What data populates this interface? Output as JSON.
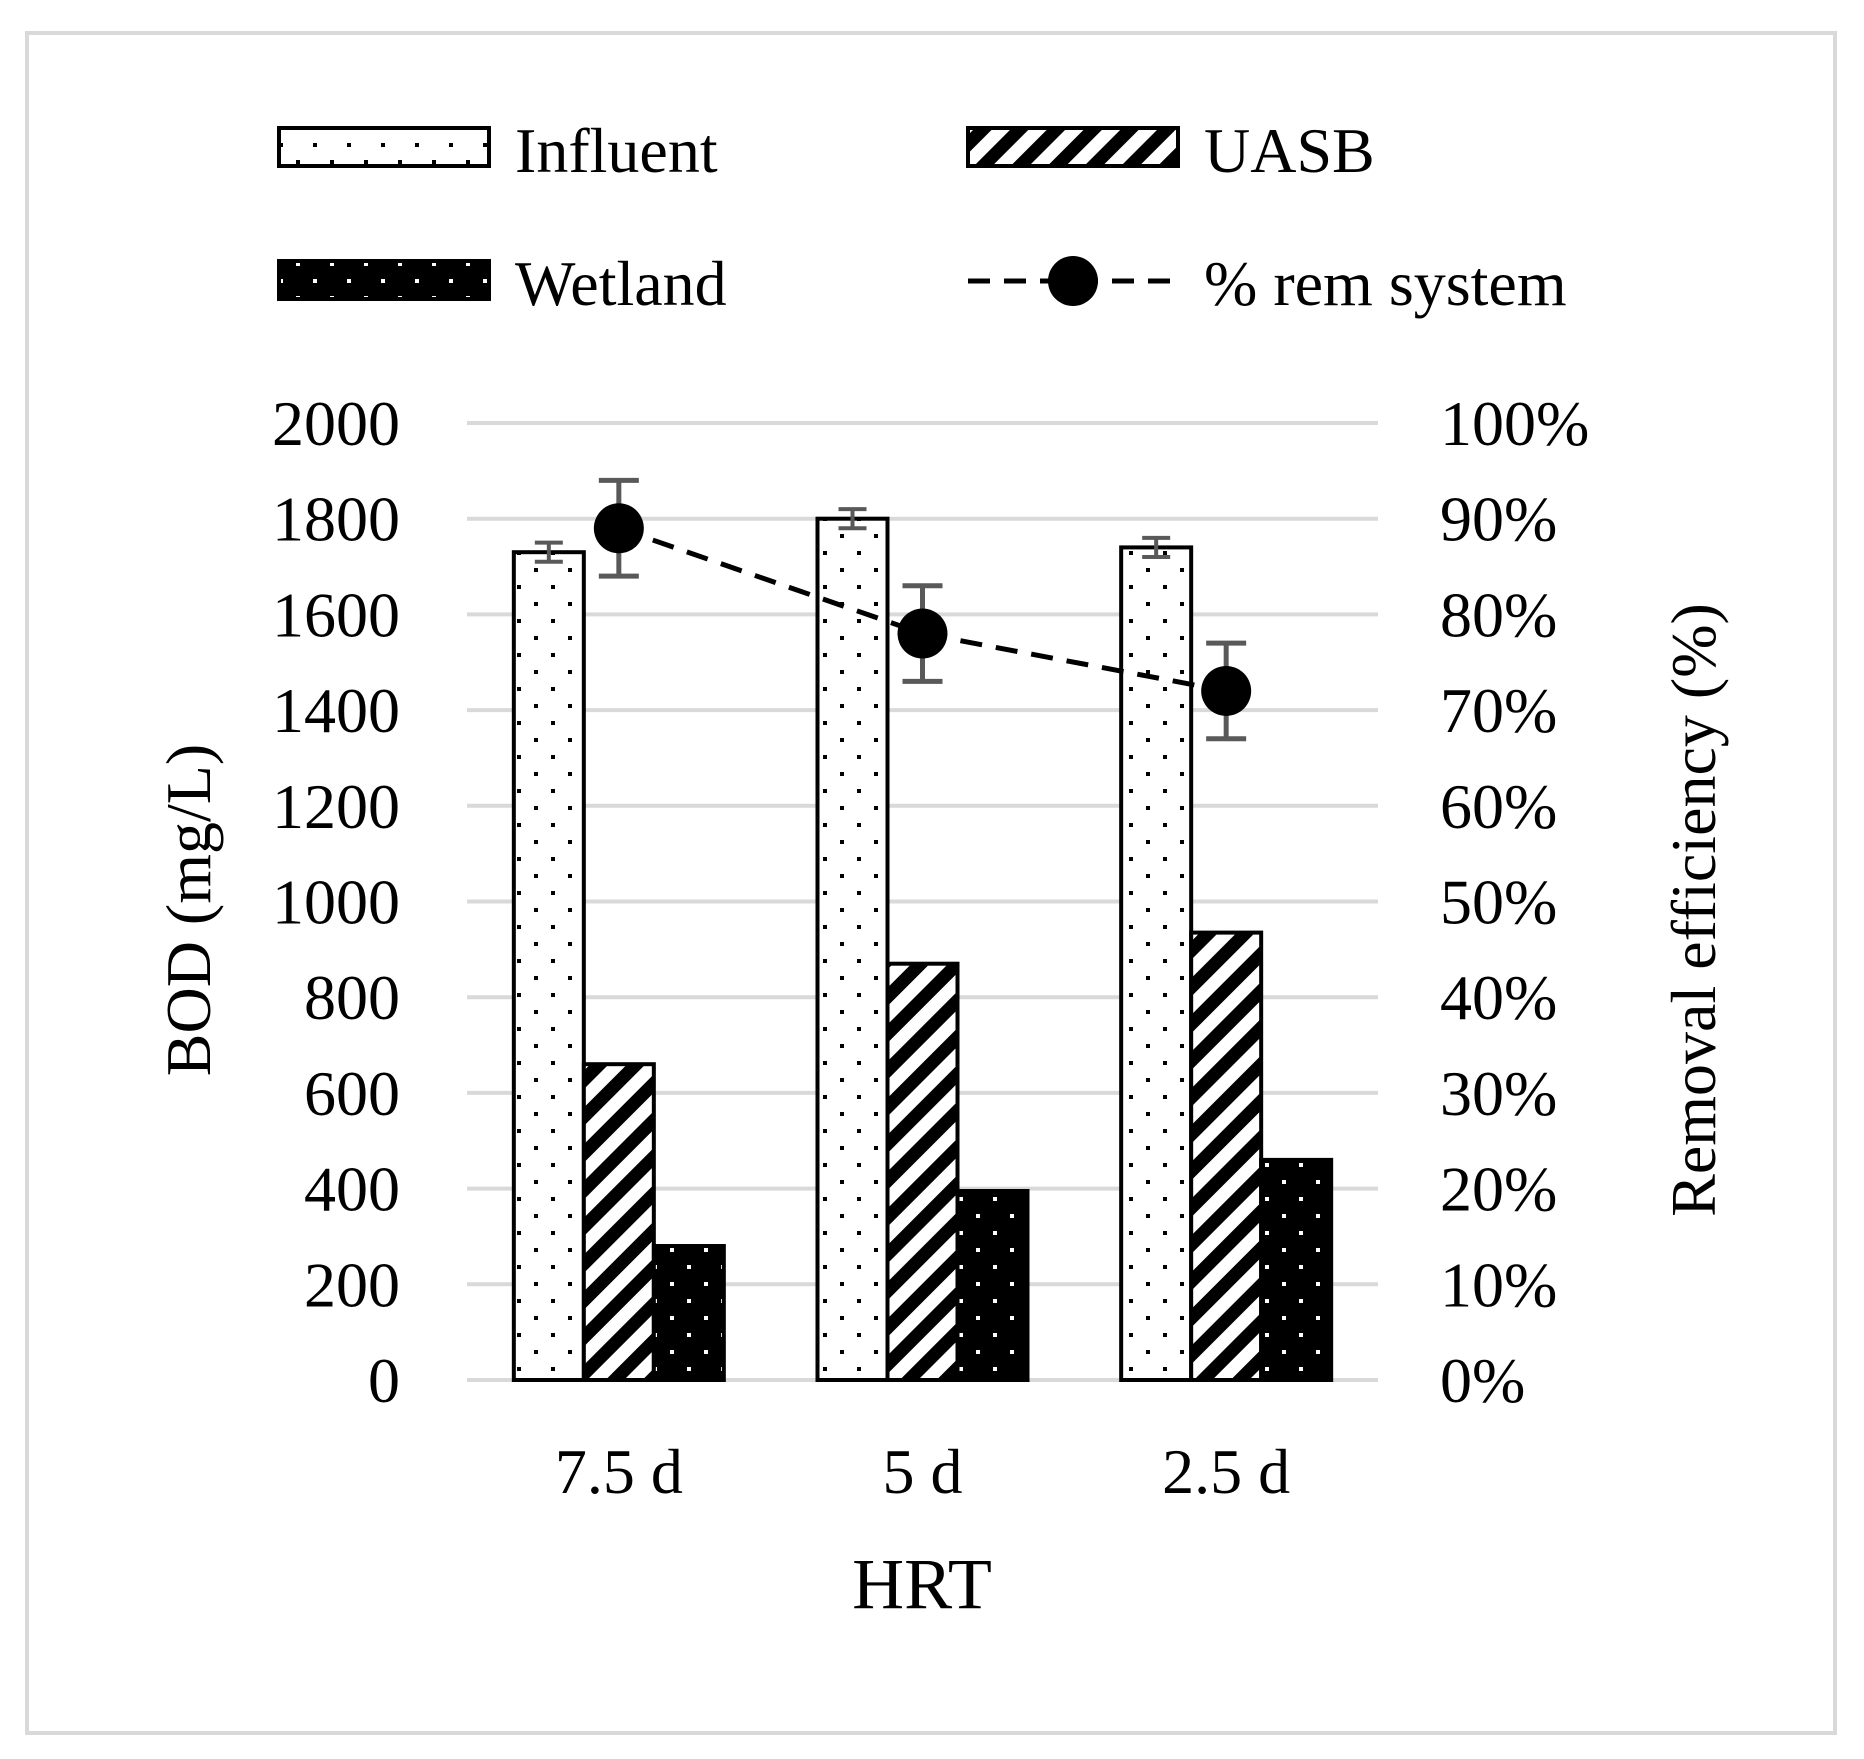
{
  "chart_data": {
    "type": "bar",
    "xlabel": "HRT",
    "ylabel": "BOD (mg/L)",
    "ylabel_right": "Removal efficiency (%)",
    "categories": [
      "7.5 d",
      "5 d",
      "2.5 d"
    ],
    "ylim": [
      0,
      2000
    ],
    "yticks": [
      "0",
      "200",
      "400",
      "600",
      "800",
      "1000",
      "1200",
      "1400",
      "1600",
      "1800",
      "2000"
    ],
    "ylim_right": [
      0,
      100
    ],
    "yticks_right": [
      "0%",
      "10%",
      "20%",
      "30%",
      "40%",
      "50%",
      "60%",
      "70%",
      "80%",
      "90%",
      "100%"
    ],
    "grid": true,
    "legend_position": "top",
    "series": [
      {
        "name": "Influent",
        "pattern": "dots-light",
        "values": [
          1730,
          1800,
          1740
        ],
        "errors": [
          20,
          20,
          20
        ]
      },
      {
        "name": "UASB",
        "pattern": "diagonal-stripes",
        "values": [
          660,
          870,
          935
        ]
      },
      {
        "name": "Wetland",
        "pattern": "dots-dark",
        "values": [
          280,
          395,
          460
        ]
      }
    ],
    "line_series": {
      "name": "% rem system",
      "axis": "right",
      "style": "dashed",
      "marker": "circle",
      "values": [
        89,
        78,
        72
      ],
      "errors": [
        5,
        5,
        5
      ]
    },
    "colors": {
      "fill": "#ffffff",
      "dark": "#000000",
      "grid": "#d9d9d9",
      "errorbar": "#595959",
      "frame": "#d9d9d9"
    }
  }
}
